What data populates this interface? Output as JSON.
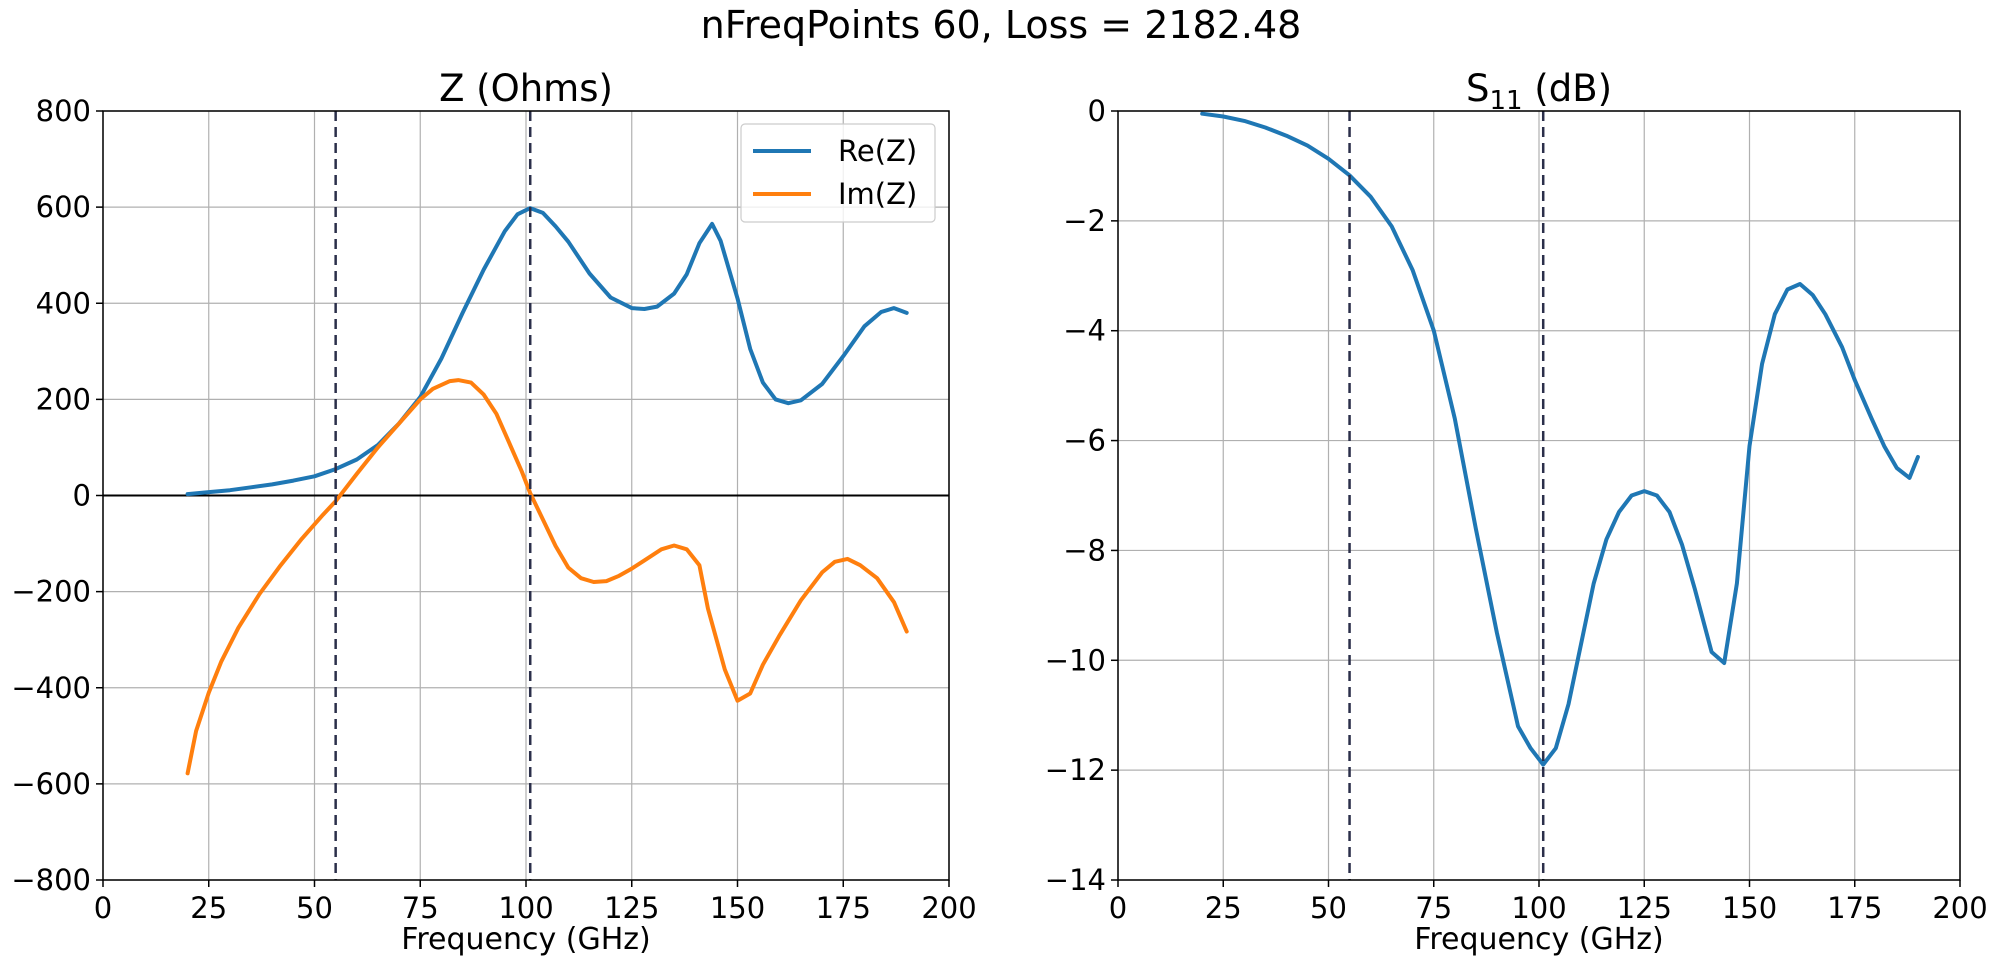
{
  "figure": {
    "suptitle": "nFreqPoints 60,  Loss =  2182.48"
  },
  "chart_data": [
    {
      "type": "line",
      "title": "Z (Ohms)",
      "xlabel": "Frequency (GHz)",
      "ylabel": "",
      "xlim": [
        0,
        200
      ],
      "ylim": [
        -800,
        800
      ],
      "xticks": [
        0,
        25,
        50,
        75,
        100,
        125,
        150,
        175,
        200
      ],
      "yticks": [
        -800,
        -600,
        -400,
        -200,
        0,
        200,
        400,
        600,
        800
      ],
      "xtick_labels": [
        "0",
        "25",
        "50",
        "75",
        "100",
        "125",
        "150",
        "175",
        "200"
      ],
      "ytick_labels": [
        "−800",
        "−600",
        "−400",
        "−200",
        "0",
        "200",
        "400",
        "600",
        "800"
      ],
      "grid": true,
      "legend": "top-right",
      "vlines": [
        55,
        101
      ],
      "hline": 0,
      "series": [
        {
          "name": "Re(Z)",
          "color": "#1f77b4",
          "x": [
            20,
            25,
            30,
            35,
            40,
            45,
            50,
            55,
            60,
            65,
            70,
            75,
            80,
            85,
            90,
            95,
            98,
            101,
            104,
            107,
            110,
            115,
            120,
            125,
            128,
            131,
            135,
            138,
            141,
            144,
            146,
            150,
            153,
            156,
            159,
            162,
            165,
            170,
            175,
            180,
            184,
            187,
            190
          ],
          "y": [
            3,
            7,
            11,
            17,
            23,
            31,
            40,
            55,
            75,
            105,
            150,
            205,
            285,
            380,
            470,
            550,
            585,
            598,
            588,
            560,
            528,
            462,
            412,
            390,
            388,
            393,
            420,
            460,
            525,
            565,
            530,
            410,
            305,
            235,
            200,
            192,
            198,
            232,
            290,
            352,
            382,
            390,
            380
          ]
        },
        {
          "name": "Im(Z)",
          "color": "#ff7f0e",
          "x": [
            20,
            22,
            25,
            28,
            32,
            37,
            42,
            47,
            52,
            55,
            60,
            65,
            70,
            75,
            78,
            82,
            84,
            87,
            90,
            93,
            96,
            99,
            101,
            104,
            107,
            110,
            113,
            116,
            119,
            122,
            125,
            128,
            132,
            135,
            138,
            141,
            143,
            147,
            150,
            153,
            156,
            160,
            165,
            170,
            173,
            176,
            179,
            183,
            187,
            190
          ],
          "y": [
            -578,
            -490,
            -410,
            -345,
            -275,
            -205,
            -145,
            -90,
            -40,
            -12,
            45,
            100,
            150,
            200,
            222,
            238,
            240,
            235,
            210,
            170,
            110,
            50,
            5,
            -50,
            -105,
            -150,
            -172,
            -180,
            -178,
            -167,
            -152,
            -135,
            -112,
            -104,
            -112,
            -145,
            -235,
            -362,
            -427,
            -412,
            -352,
            -290,
            -218,
            -160,
            -138,
            -132,
            -145,
            -172,
            -222,
            -283
          ]
        }
      ]
    },
    {
      "type": "line",
      "title": "S",
      "title_subscript": "11",
      "title_suffix": " (dB)",
      "xlabel": "Frequency (GHz)",
      "ylabel": "",
      "xlim": [
        0,
        200
      ],
      "ylim": [
        -14,
        0
      ],
      "xticks": [
        0,
        25,
        50,
        75,
        100,
        125,
        150,
        175,
        200
      ],
      "yticks": [
        -14,
        -12,
        -10,
        -8,
        -6,
        -4,
        -2,
        0
      ],
      "xtick_labels": [
        "0",
        "25",
        "50",
        "75",
        "100",
        "125",
        "150",
        "175",
        "200"
      ],
      "ytick_labels": [
        "−14",
        "−12",
        "−10",
        "−8",
        "−6",
        "−4",
        "−2",
        "0"
      ],
      "grid": true,
      "vlines": [
        55,
        101
      ],
      "series": [
        {
          "color": "#1f77b4",
          "x": [
            20,
            25,
            30,
            35,
            40,
            45,
            50,
            55,
            60,
            65,
            70,
            75,
            80,
            85,
            90,
            95,
            98,
            101,
            104,
            107,
            110,
            113,
            116,
            119,
            122,
            125,
            128,
            131,
            134,
            137,
            141,
            144,
            147,
            150,
            153,
            156,
            159,
            162,
            165,
            168,
            172,
            175,
            179,
            182,
            185,
            188,
            190
          ],
          "y": [
            -0.05,
            -0.1,
            -0.18,
            -0.3,
            -0.45,
            -0.63,
            -0.87,
            -1.17,
            -1.56,
            -2.1,
            -2.9,
            -4.0,
            -5.6,
            -7.6,
            -9.5,
            -11.2,
            -11.6,
            -11.9,
            -11.6,
            -10.8,
            -9.7,
            -8.6,
            -7.8,
            -7.3,
            -7.0,
            -6.92,
            -7.0,
            -7.3,
            -7.9,
            -8.7,
            -9.85,
            -10.05,
            -8.6,
            -6.1,
            -4.6,
            -3.7,
            -3.25,
            -3.15,
            -3.35,
            -3.7,
            -4.3,
            -4.9,
            -5.6,
            -6.1,
            -6.5,
            -6.68,
            -6.3
          ]
        }
      ]
    }
  ]
}
